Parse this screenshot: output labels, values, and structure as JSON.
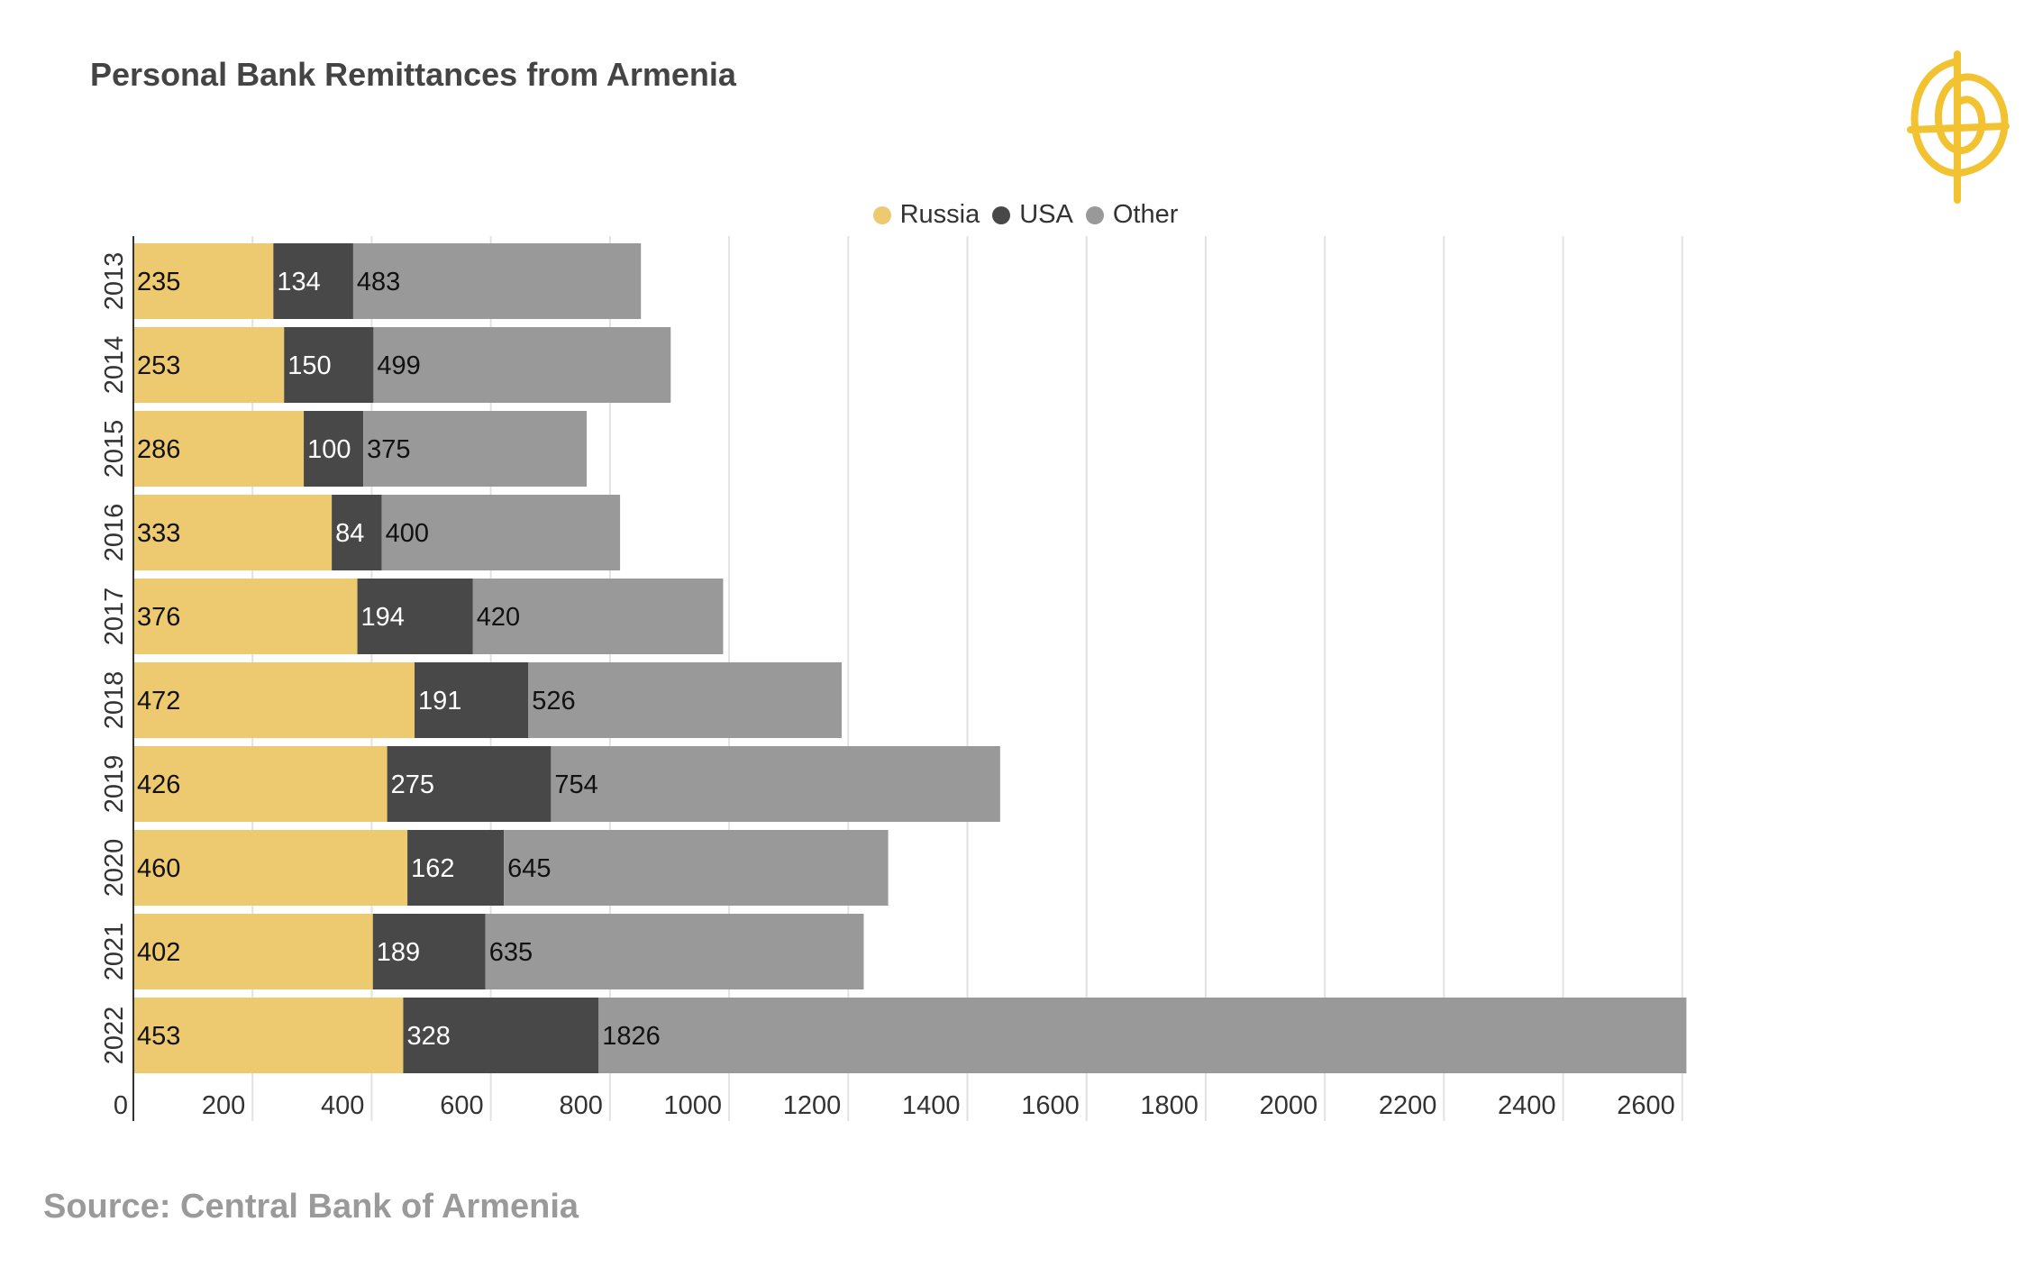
{
  "title": "Personal Bank Remittances from Armenia",
  "source": "Source: Central Bank of Armenia",
  "logo_icon": "globe-swirl-logo-icon",
  "colors": {
    "Russia": "#EDC96F",
    "USA": "#484848",
    "Other": "#999999",
    "grid": "#e2e2e2",
    "axis": "#333333",
    "label_dark": "#111111",
    "label_light": "#ffffff",
    "logo": "#F2C230"
  },
  "legend": [
    {
      "name": "Russia"
    },
    {
      "name": "USA"
    },
    {
      "name": "Other"
    }
  ],
  "chart_data": {
    "type": "bar",
    "orientation": "horizontal",
    "stacked": true,
    "title": "Personal Bank Remittances from Armenia",
    "categories": [
      "2013",
      "2014",
      "2015",
      "2016",
      "2017",
      "2018",
      "2019",
      "2020",
      "2021",
      "2022"
    ],
    "series": [
      {
        "name": "Russia",
        "values": [
          235,
          253,
          286,
          333,
          376,
          472,
          426,
          460,
          402,
          453
        ]
      },
      {
        "name": "USA",
        "values": [
          134,
          150,
          100,
          84,
          194,
          191,
          275,
          162,
          189,
          328
        ]
      },
      {
        "name": "Other",
        "values": [
          483,
          499,
          375,
          400,
          420,
          526,
          754,
          645,
          635,
          1826
        ]
      }
    ],
    "xlim": [
      0,
      2620
    ],
    "xticks": [
      0,
      200,
      400,
      600,
      800,
      1000,
      1200,
      1400,
      1600,
      1800,
      2000,
      2200,
      2400,
      2600
    ],
    "grid": true,
    "legend_position": "top-center",
    "xlabel": "",
    "ylabel": ""
  }
}
